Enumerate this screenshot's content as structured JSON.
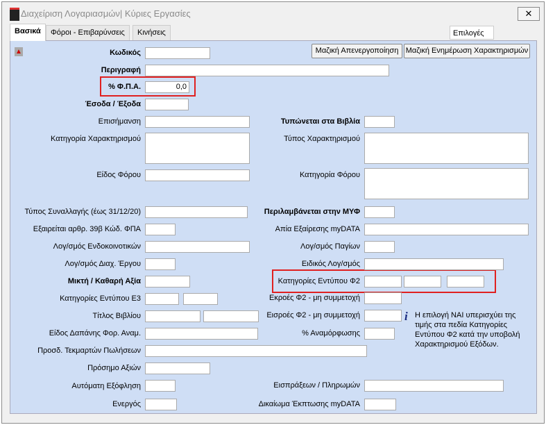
{
  "window": {
    "title": "Διαχείριση Λογαριασμών| Κύριες Εργασίες",
    "close": "✕"
  },
  "tabs": [
    "Βασικά",
    "Φόροι - Επιβαρύνσεις",
    "Κινήσεις"
  ],
  "options": "Επιλογές",
  "buttons": {
    "deactivate": "Μαζική Απενεργοποίηση",
    "update": "Μαζική Ενημέρωση Χαρακτηρισμών"
  },
  "fields": {
    "code": "Κωδικός",
    "description": "Περιγραφή",
    "vat": "% Φ.Π.Α.",
    "vat_value": "0,0",
    "income": "Έσοδα / Έξοδα",
    "marking": "Επισήμανση",
    "printed": "Τυπώνεται στα Βιβλία",
    "char_cat": "Κατηγορία Χαρακτηρισμού",
    "char_type": "Τύπος Χαρακτηρισμού",
    "tax_kind": "Είδος Φόρου",
    "tax_cat": "Κατηγορία Φόρου",
    "trans_type": "Τύπος Συναλλαγής (έως 31/12/20)",
    "myf": "Περιλαμβάνεται στην ΜΥΦ",
    "exempt": "Εξαιρείται αρθρ. 39β Κώδ. ΦΠΑ",
    "exempt_reason": "Απία Εξαίρεσης myDATA",
    "intra": "Λογ/σμός Ενδοκοινοτικών",
    "fixed": "Λογ/σμός  Παγίων",
    "project": "Λογ/σμός Διαχ. Έργου",
    "special": "Ειδικός Λογ/σμός",
    "gross": "Μικτή  / Καθαρή Αξία",
    "f2_cat": "Κατηγορίες Εντύπου Φ2",
    "e3_cat": "Κατηγορίες Εντύπου Ε3",
    "f2_out": "Εκροές Φ2 - μη συμμετοχή",
    "book_title": "Τίτλος Βιβλίου",
    "f2_in": "Εισροές Φ2 - μη συμμετοχή",
    "expense": "Είδος Δαπάνης Φορ. Αναμ.",
    "reform": "% Αναμόρφωσης",
    "presumed": "Προσδ. Τεκμαρτών Πωλήσεων",
    "sign": "Πρόσημο Αξιών",
    "auto_pay": "Αυτόματη Εξόφληση",
    "receipts": "Εισπράξεων / Πληρωμών",
    "active": "Ενεργός",
    "deduct": "Δικαίωμα Έκπτωσης myDATA"
  },
  "note": "Η επιλογή ΝΑΙ υπερισχύει της τιμής στα πεδία Κατηγορίες Εντύπου Φ2 κατά την υποβολή Χαρακτηρισμού Εξόδων."
}
